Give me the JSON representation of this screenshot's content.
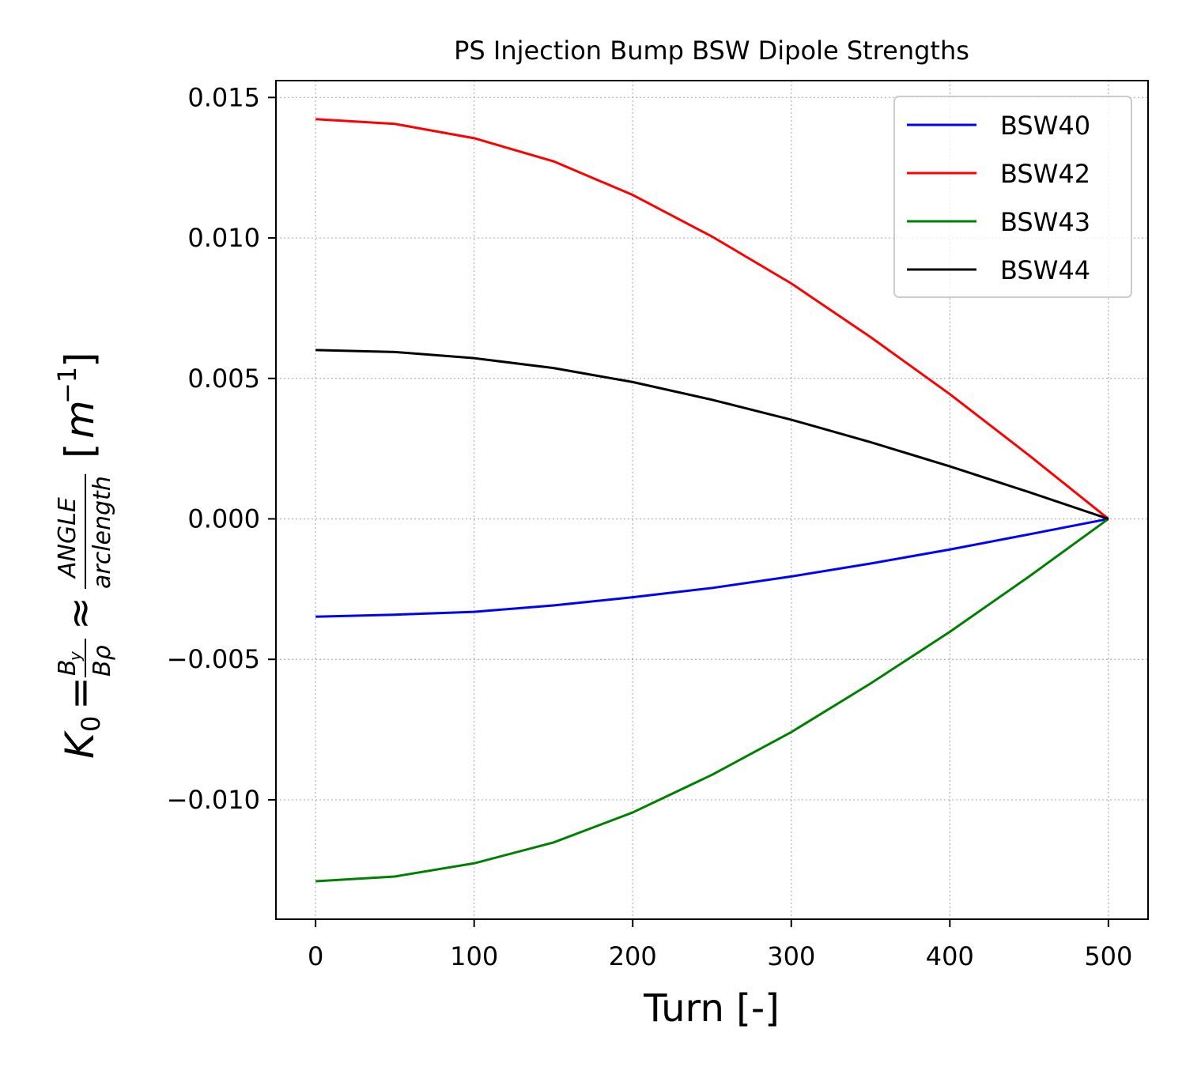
{
  "chart_data": {
    "type": "line",
    "title": "PS Injection Bump BSW Dipole Strengths",
    "xlabel": "Turn [-]",
    "ylabel": {
      "k": "K",
      "k_sub": "0",
      "eq": "=",
      "by": "B",
      "by_sub": "y",
      "brho": "Bρ",
      "approx": "≈",
      "angle": "ANGLE",
      "arclength": "arclength",
      "unit_open": "[",
      "unit_m": "m",
      "unit_exp": "−1",
      "unit_close": "]"
    },
    "xlim": [
      -25,
      525
    ],
    "ylim": [
      -0.01425,
      0.0156
    ],
    "grid": true,
    "legend_position": "top-right",
    "x_ticks": [
      {
        "value": 0,
        "label": "0"
      },
      {
        "value": 100,
        "label": "100"
      },
      {
        "value": 200,
        "label": "200"
      },
      {
        "value": 300,
        "label": "300"
      },
      {
        "value": 400,
        "label": "400"
      },
      {
        "value": 500,
        "label": "500"
      }
    ],
    "y_ticks": [
      {
        "value": 0.015,
        "label": "0.015"
      },
      {
        "value": 0.01,
        "label": "0.010"
      },
      {
        "value": 0.005,
        "label": "0.005"
      },
      {
        "value": 0.0,
        "label": "0.000"
      },
      {
        "value": -0.005,
        "label": "−0.005"
      },
      {
        "value": -0.01,
        "label": "−0.010"
      }
    ],
    "x": [
      0,
      50,
      100,
      150,
      200,
      250,
      300,
      350,
      400,
      450,
      500
    ],
    "series": [
      {
        "name": "BSW40",
        "color": "#0000ff",
        "values": [
          -0.00348,
          -0.00341,
          -0.00331,
          -0.00308,
          -0.00279,
          -0.00246,
          -0.00205,
          -0.00159,
          -0.00109,
          -0.00055,
          0.0
        ]
      },
      {
        "name": "BSW42",
        "color": "#ff0000",
        "values": [
          0.01423,
          0.01406,
          0.01355,
          0.01273,
          0.01153,
          0.01005,
          0.00838,
          0.00647,
          0.00444,
          0.00226,
          0.0
        ]
      },
      {
        "name": "BSW43",
        "color": "#008000",
        "values": [
          -0.0129,
          -0.01273,
          -0.01226,
          -0.01152,
          -0.01045,
          -0.00911,
          -0.00759,
          -0.00586,
          -0.00402,
          -0.00205,
          0.0
        ]
      },
      {
        "name": "BSW44",
        "color": "#000000",
        "values": [
          0.00601,
          0.00594,
          0.00572,
          0.00537,
          0.00487,
          0.00424,
          0.00353,
          0.00273,
          0.00187,
          0.00095,
          0.0
        ]
      }
    ]
  }
}
